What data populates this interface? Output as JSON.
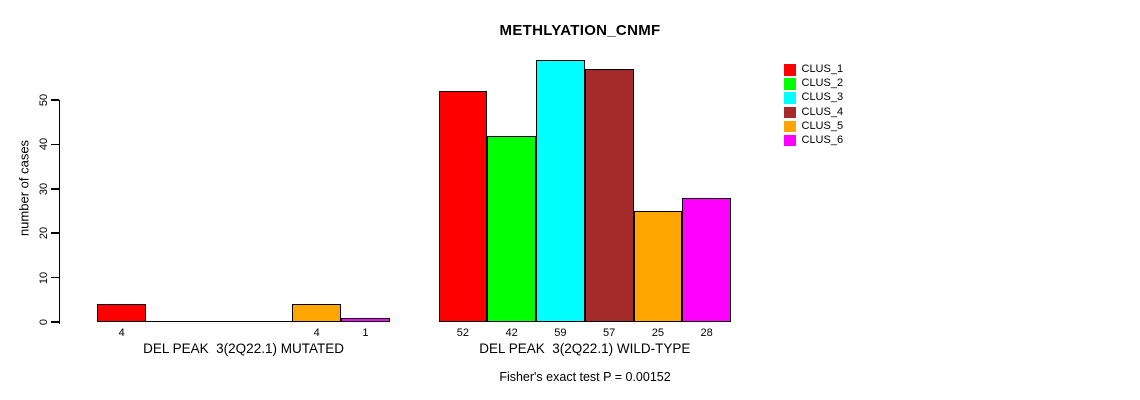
{
  "title": "METHLYATION_CNMF",
  "y_axis": {
    "label": "number of cases",
    "ticks": [
      "0",
      "10",
      "20",
      "30",
      "40",
      "50"
    ]
  },
  "footer": "Fisher's exact test P = 0.00152",
  "legend": {
    "entries": [
      {
        "label": "CLUS_1",
        "color": "#FF0000"
      },
      {
        "label": "CLUS_2",
        "color": "#00FF00"
      },
      {
        "label": "CLUS_3",
        "color": "#00FFFF"
      },
      {
        "label": "CLUS_4",
        "color": "#A52A2A"
      },
      {
        "label": "CLUS_5",
        "color": "#FFA500"
      },
      {
        "label": "CLUS_6",
        "color": "#FF00FF"
      }
    ]
  },
  "chart_data": {
    "type": "bar",
    "title": "METHLYATION_CNMF",
    "ylabel": "number of cases",
    "ylim": [
      0,
      59
    ],
    "yticks": [
      0,
      10,
      20,
      30,
      40,
      50
    ],
    "grid": false,
    "legend_position": "right",
    "categories": [
      "DEL PEAK  3(2Q22.1) MUTATED",
      "DEL PEAK  3(2Q22.1) WILD-TYPE"
    ],
    "series": [
      {
        "name": "CLUS_1",
        "color": "#FF0000",
        "values": [
          4,
          52
        ]
      },
      {
        "name": "CLUS_2",
        "color": "#00FF00",
        "values": [
          0,
          42
        ]
      },
      {
        "name": "CLUS_3",
        "color": "#00FFFF",
        "values": [
          0,
          59
        ]
      },
      {
        "name": "CLUS_4",
        "color": "#A52A2A",
        "values": [
          0,
          57
        ]
      },
      {
        "name": "CLUS_5",
        "color": "#FFA500",
        "values": [
          4,
          25
        ]
      },
      {
        "name": "CLUS_6",
        "color": "#FF00FF",
        "values": [
          1,
          28
        ]
      }
    ],
    "bar_value_labels_shown_only_when_nonzero": true,
    "annotation": "Fisher's exact test P = 0.00152"
  }
}
